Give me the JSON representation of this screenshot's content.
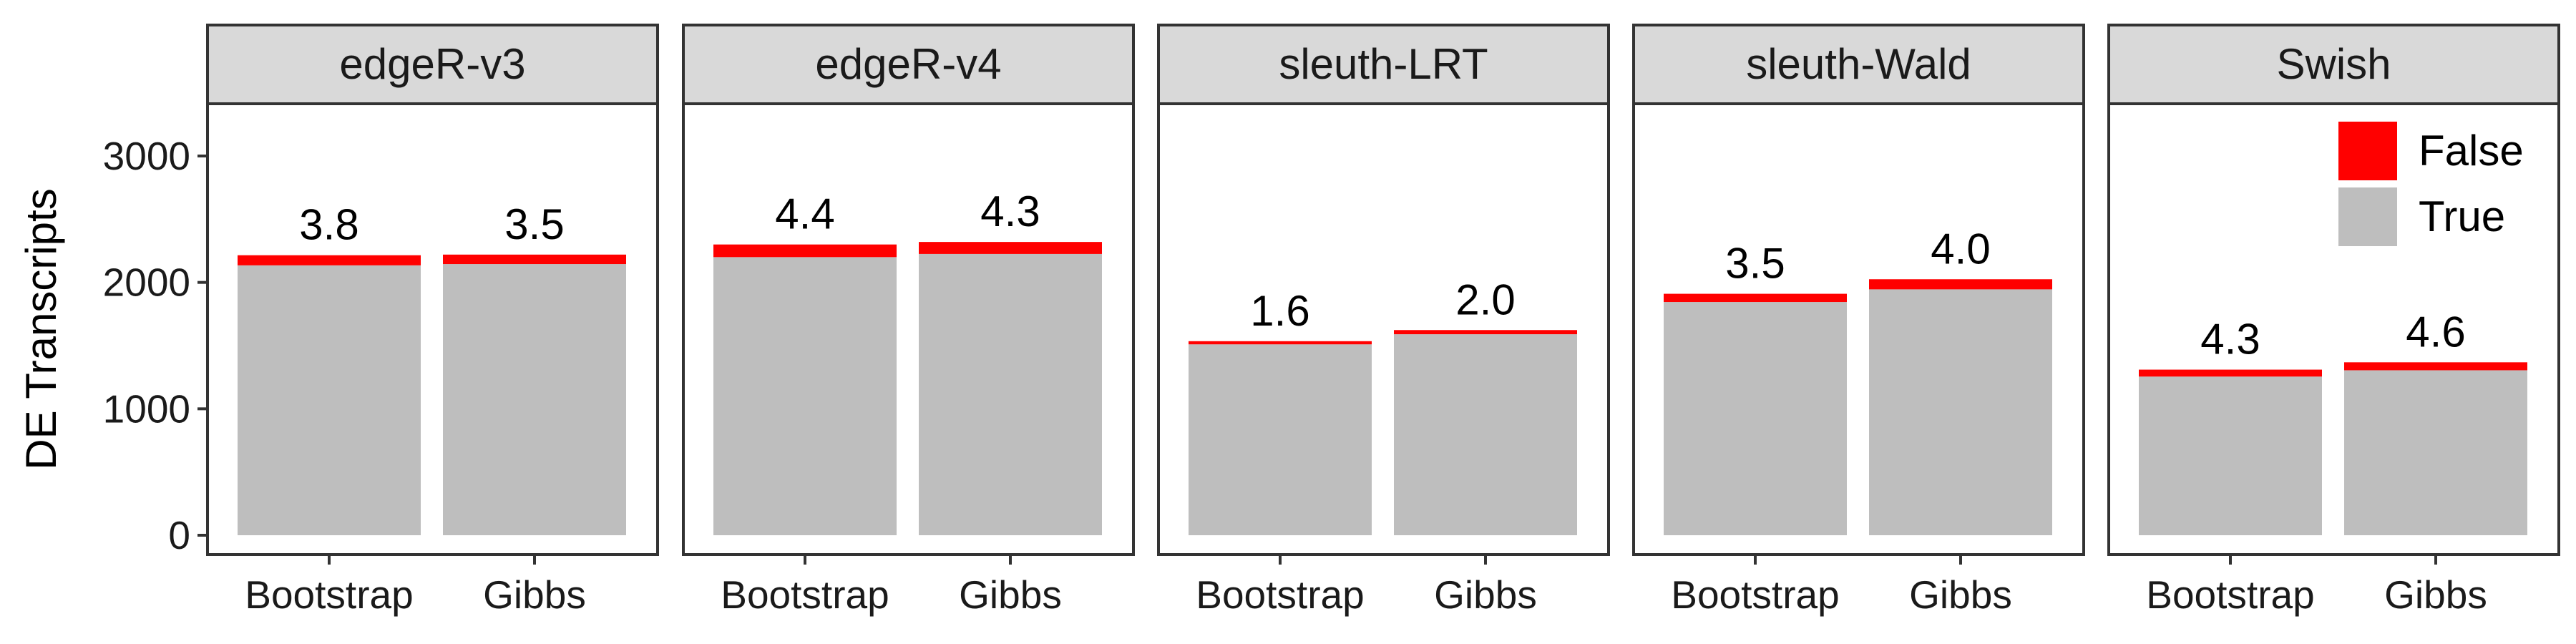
{
  "chart_data": {
    "type": "bar",
    "stacked": true,
    "ylabel": "DE Transcripts",
    "xlabel": "",
    "ylim": [
      0,
      4000
    ],
    "yticks": [
      0,
      1000,
      2000,
      3000
    ],
    "grid": false,
    "legend_position": "top-right",
    "categories": [
      "Bootstrap",
      "Gibbs"
    ],
    "series_names": [
      "False",
      "True"
    ],
    "colors": {
      "False": "#ff0000",
      "True": "#bebebe"
    },
    "panels": [
      {
        "title": "edgeR-v3",
        "true_values": [
          2135,
          2145
        ],
        "false_values": [
          80,
          75
        ],
        "labels": [
          "3.8",
          "3.5"
        ]
      },
      {
        "title": "edgeR-v4",
        "true_values": [
          2200,
          2225
        ],
        "false_values": [
          100,
          95
        ],
        "labels": [
          "4.4",
          "4.3"
        ]
      },
      {
        "title": "sleuth-LRT",
        "true_values": [
          1510,
          1590
        ],
        "false_values": [
          25,
          33
        ],
        "labels": [
          "1.6",
          "2.0"
        ]
      },
      {
        "title": "sleuth-Wald",
        "true_values": [
          1845,
          1945
        ],
        "false_values": [
          65,
          80
        ],
        "labels": [
          "3.5",
          "4.0"
        ]
      },
      {
        "title": "Swish",
        "true_values": [
          1255,
          1305
        ],
        "false_values": [
          55,
          63
        ],
        "labels": [
          "4.3",
          "4.6"
        ]
      }
    ],
    "legend": [
      {
        "name": "False",
        "color": "#ff0000"
      },
      {
        "name": "True",
        "color": "#bebebe"
      }
    ]
  }
}
